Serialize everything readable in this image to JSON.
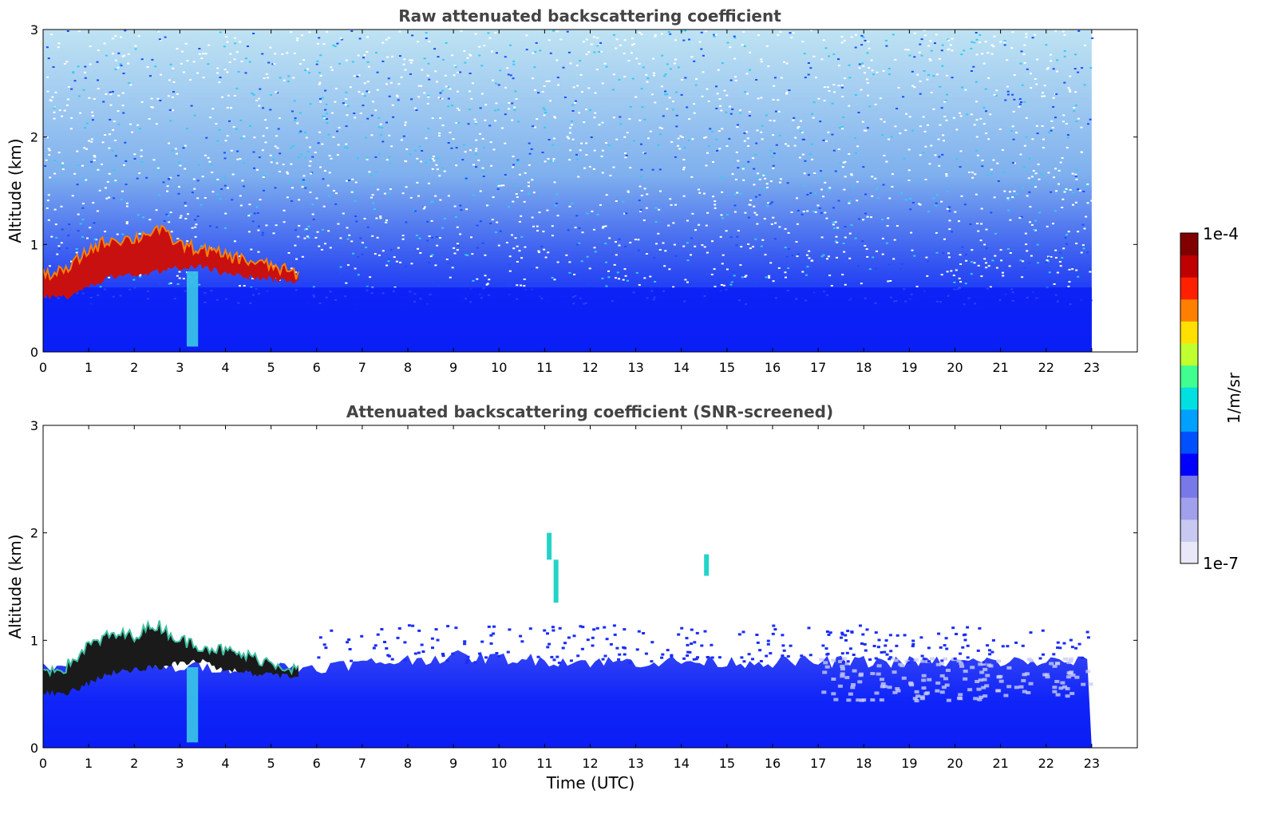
{
  "chart_data": [
    {
      "type": "heatmap",
      "title": "Raw attenuated backscattering coefficient",
      "xlabel": "",
      "ylabel": "Altitude (km)",
      "xlim": [
        0,
        24
      ],
      "ylim": [
        0,
        3
      ],
      "xticks": [
        "0",
        "1",
        "2",
        "3",
        "4",
        "5",
        "6",
        "7",
        "8",
        "9",
        "10",
        "11",
        "12",
        "13",
        "14",
        "15",
        "16",
        "17",
        "18",
        "19",
        "20",
        "21",
        "22",
        "23"
      ],
      "yticks": [
        "0",
        "1",
        "2",
        "3"
      ],
      "data_end_time": 23,
      "layer_top_km": [
        [
          0.0,
          0.72
        ],
        [
          0.5,
          0.75
        ],
        [
          1.0,
          0.95
        ],
        [
          1.5,
          1.05
        ],
        [
          2.0,
          1.05
        ],
        [
          2.5,
          1.15
        ],
        [
          3.0,
          1.0
        ],
        [
          3.5,
          0.95
        ],
        [
          4.0,
          0.9
        ],
        [
          4.5,
          0.85
        ],
        [
          5.0,
          0.8
        ],
        [
          5.6,
          0.72
        ]
      ],
      "layer_base_km": [
        [
          0.0,
          0.52
        ],
        [
          0.5,
          0.5
        ],
        [
          1.0,
          0.6
        ],
        [
          1.5,
          0.7
        ],
        [
          2.0,
          0.72
        ],
        [
          2.5,
          0.75
        ],
        [
          3.0,
          0.78
        ],
        [
          3.5,
          0.8
        ],
        [
          4.0,
          0.72
        ],
        [
          4.5,
          0.7
        ],
        [
          5.0,
          0.68
        ],
        [
          5.6,
          0.65
        ]
      ],
      "screened": false
    },
    {
      "type": "heatmap",
      "title": "Attenuated backscattering coefficient (SNR-screened)",
      "xlabel": "Time (UTC)",
      "ylabel": "Altitude (km)",
      "xlim": [
        0,
        24
      ],
      "ylim": [
        0,
        3
      ],
      "xticks": [
        "0",
        "1",
        "2",
        "3",
        "4",
        "5",
        "6",
        "7",
        "8",
        "9",
        "10",
        "11",
        "12",
        "13",
        "14",
        "15",
        "16",
        "17",
        "18",
        "19",
        "20",
        "21",
        "22",
        "23"
      ],
      "yticks": [
        "0",
        "1",
        "2",
        "3"
      ],
      "data_end_time": 23,
      "layer_top_km": [
        [
          0.0,
          0.72
        ],
        [
          0.5,
          0.75
        ],
        [
          1.0,
          0.95
        ],
        [
          1.5,
          1.05
        ],
        [
          2.0,
          1.05
        ],
        [
          2.5,
          1.15
        ],
        [
          3.0,
          1.0
        ],
        [
          3.5,
          0.95
        ],
        [
          4.0,
          0.9
        ],
        [
          4.5,
          0.85
        ],
        [
          5.0,
          0.8
        ],
        [
          5.6,
          0.72
        ]
      ],
      "layer_base_km": [
        [
          0.0,
          0.52
        ],
        [
          0.5,
          0.5
        ],
        [
          1.0,
          0.6
        ],
        [
          1.5,
          0.7
        ],
        [
          2.0,
          0.72
        ],
        [
          2.5,
          0.75
        ],
        [
          3.0,
          0.78
        ],
        [
          3.5,
          0.8
        ],
        [
          4.0,
          0.72
        ],
        [
          4.5,
          0.7
        ],
        [
          5.0,
          0.68
        ],
        [
          5.6,
          0.65
        ]
      ],
      "screened_top_km": [
        [
          0,
          0.75
        ],
        [
          6,
          0.75
        ],
        [
          9,
          0.85
        ],
        [
          12,
          0.8
        ],
        [
          17,
          0.8
        ],
        [
          23,
          0.8
        ]
      ],
      "plume_features": [
        {
          "time": 11.1,
          "alt_low_km": 1.75,
          "alt_high_km": 2.0
        },
        {
          "time": 11.25,
          "alt_low_km": 1.35,
          "alt_high_km": 1.75
        },
        {
          "time": 14.55,
          "alt_low_km": 1.6,
          "alt_high_km": 1.8
        }
      ],
      "screened": true
    }
  ],
  "colorbar": {
    "label": "1/m/sr",
    "max_label": "1e-4",
    "min_label": "1e-7",
    "colors": [
      "#e8e8f8",
      "#c8c8f0",
      "#a0a0ec",
      "#7878e8",
      "#0000ff",
      "#0050ff",
      "#00a0ff",
      "#00e0e0",
      "#40ff90",
      "#c0ff30",
      "#ffe000",
      "#ff8000",
      "#ff2000",
      "#c00000",
      "#800000"
    ]
  }
}
